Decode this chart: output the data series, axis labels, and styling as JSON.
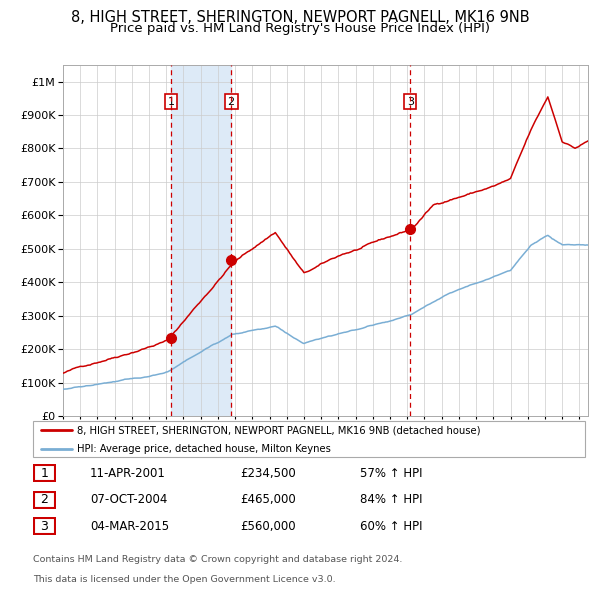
{
  "title1": "8, HIGH STREET, SHERINGTON, NEWPORT PAGNELL, MK16 9NB",
  "title2": "Price paid vs. HM Land Registry's House Price Index (HPI)",
  "ytick_vals": [
    0,
    100000,
    200000,
    300000,
    400000,
    500000,
    600000,
    700000,
    800000,
    900000,
    1000000
  ],
  "ylim": [
    0,
    1050000
  ],
  "xlim_start": 1995.0,
  "xlim_end": 2025.5,
  "transactions": [
    {
      "num": 1,
      "date": "11-APR-2001",
      "x": 2001.27,
      "price": 234500,
      "pct": "57% ↑ HPI"
    },
    {
      "num": 2,
      "date": "07-OCT-2004",
      "x": 2004.77,
      "price": 465000,
      "pct": "84% ↑ HPI"
    },
    {
      "num": 3,
      "date": "04-MAR-2015",
      "x": 2015.17,
      "price": 560000,
      "pct": "60% ↑ HPI"
    }
  ],
  "legend_line1": "8, HIGH STREET, SHERINGTON, NEWPORT PAGNELL, MK16 9NB (detached house)",
  "legend_line2": "HPI: Average price, detached house, Milton Keynes",
  "footnote1": "Contains HM Land Registry data © Crown copyright and database right 2024.",
  "footnote2": "This data is licensed under the Open Government Licence v3.0.",
  "red_color": "#cc0000",
  "blue_color": "#7aaed4",
  "shade_color": "#ddeaf7",
  "background_color": "#ffffff",
  "grid_color": "#cccccc",
  "title_fontsize": 10.5,
  "subtitle_fontsize": 9.5
}
